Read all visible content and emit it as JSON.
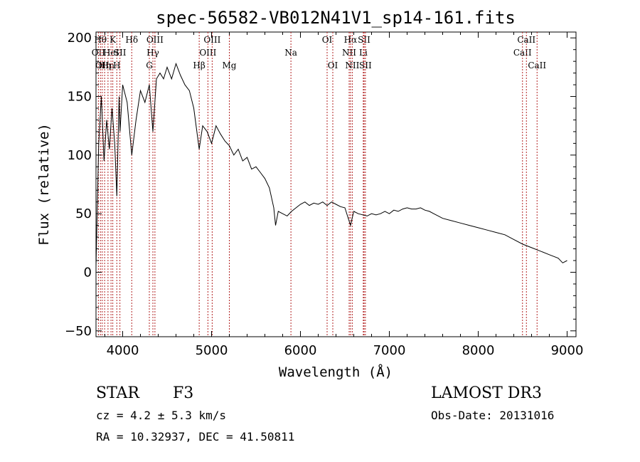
{
  "chart_data": {
    "type": "line",
    "title": "spec-56582-VB012N41V1_sp14-161.fits",
    "xlabel": "Wavelength (Å)",
    "ylabel": "Flux (relative)",
    "xlim": [
      3700,
      9100
    ],
    "ylim": [
      -55,
      205
    ],
    "x_ticks": [
      4000,
      5000,
      6000,
      7000,
      8000,
      9000
    ],
    "y_ticks": [
      -50,
      0,
      50,
      100,
      150,
      200
    ],
    "x_tick_labels": [
      "4000",
      "5000",
      "6000",
      "7000",
      "8000",
      "9000"
    ],
    "y_tick_labels": [
      "−50",
      "0",
      "50",
      "100",
      "150",
      "200"
    ],
    "line_color": "#000000",
    "marker_color": "#b22222",
    "series": [
      {
        "name": "flux",
        "x": [
          3700,
          3730,
          3760,
          3790,
          3820,
          3850,
          3880,
          3910,
          3934,
          3960,
          3970,
          4000,
          4050,
          4102,
          4150,
          4200,
          4250,
          4300,
          4340,
          4380,
          4420,
          4460,
          4500,
          4550,
          4600,
          4650,
          4700,
          4750,
          4800,
          4861,
          4900,
          4950,
          5000,
          5050,
          5100,
          5150,
          5200,
          5250,
          5300,
          5350,
          5400,
          5450,
          5500,
          5550,
          5600,
          5650,
          5700,
          5720,
          5750,
          5800,
          5850,
          5900,
          5950,
          6000,
          6050,
          6100,
          6150,
          6200,
          6250,
          6300,
          6350,
          6400,
          6450,
          6500,
          6563,
          6600,
          6650,
          6700,
          6750,
          6800,
          6850,
          6900,
          6950,
          7000,
          7050,
          7100,
          7150,
          7200,
          7250,
          7300,
          7350,
          7400,
          7450,
          7500,
          7600,
          7700,
          7800,
          7900,
          8000,
          8100,
          8200,
          8300,
          8400,
          8500,
          8600,
          8700,
          8800,
          8900,
          8950,
          9000
        ],
        "y": [
          5,
          110,
          150,
          95,
          130,
          105,
          140,
          110,
          65,
          150,
          120,
          160,
          145,
          100,
          130,
          155,
          145,
          160,
          120,
          165,
          170,
          165,
          175,
          165,
          178,
          168,
          160,
          155,
          140,
          105,
          125,
          120,
          110,
          125,
          118,
          112,
          108,
          100,
          105,
          95,
          98,
          88,
          90,
          85,
          80,
          72,
          55,
          40,
          52,
          50,
          48,
          52,
          55,
          58,
          60,
          57,
          59,
          58,
          60,
          57,
          60,
          58,
          56,
          55,
          40,
          52,
          50,
          49,
          48,
          50,
          49,
          50,
          52,
          50,
          53,
          52,
          54,
          55,
          54,
          54,
          55,
          53,
          52,
          50,
          46,
          44,
          42,
          40,
          38,
          36,
          34,
          32,
          28,
          24,
          21,
          18,
          15,
          12,
          8,
          10
        ]
      }
    ],
    "markers": [
      {
        "wl": 3727,
        "label": "OII",
        "row": 2
      },
      {
        "wl": 3750,
        "label": "Hθ",
        "row": 1
      },
      {
        "wl": 3770,
        "label": "OII",
        "row": 3
      },
      {
        "wl": 3797,
        "label": "Hη",
        "row": 3
      },
      {
        "wl": 3835,
        "label": "Hn",
        "row": 3
      },
      {
        "wl": 3869,
        "label": "HeI",
        "row": 2
      },
      {
        "wl": 3889,
        "label": "K",
        "row": 1
      },
      {
        "wl": 3934,
        "label": "H",
        "row": 3
      },
      {
        "wl": 3969,
        "label": "SII",
        "row": 2
      },
      {
        "wl": 4102,
        "label": "Hδ",
        "row": 1
      },
      {
        "wl": 4300,
        "label": "G",
        "row": 3
      },
      {
        "wl": 4340,
        "label": "Hγ",
        "row": 2
      },
      {
        "wl": 4363,
        "label": "OIII",
        "row": 1
      },
      {
        "wl": 4861,
        "label": "Hβ",
        "row": 3
      },
      {
        "wl": 4959,
        "label": "OIII",
        "row": 2
      },
      {
        "wl": 5007,
        "label": "OIII",
        "row": 1
      },
      {
        "wl": 5200,
        "label": "Mg",
        "row": 3
      },
      {
        "wl": 5893,
        "label": "Na",
        "row": 2
      },
      {
        "wl": 6300,
        "label": "OI",
        "row": 1
      },
      {
        "wl": 6364,
        "label": "OI",
        "row": 3
      },
      {
        "wl": 6548,
        "label": "NII",
        "row": 2
      },
      {
        "wl": 6563,
        "label": "Hα",
        "row": 1
      },
      {
        "wl": 6583,
        "label": "NII",
        "row": 3
      },
      {
        "wl": 6707,
        "label": "Li",
        "row": 2
      },
      {
        "wl": 6716,
        "label": "SII",
        "row": 1
      },
      {
        "wl": 6731,
        "label": "SII",
        "row": 3
      },
      {
        "wl": 8498,
        "label": "CaII",
        "row": 2
      },
      {
        "wl": 8542,
        "label": "CaII",
        "row": 1
      },
      {
        "wl": 8662,
        "label": "CaII",
        "row": 3
      }
    ]
  },
  "info": {
    "object_class": "STAR",
    "subclass": "F3",
    "survey": "LAMOST DR3",
    "redshift": "cz = 4.2 ± 5.3 km/s",
    "obs_date": "Obs-Date: 20131016",
    "coords": "RA =  10.32937, DEC =  41.50811"
  }
}
